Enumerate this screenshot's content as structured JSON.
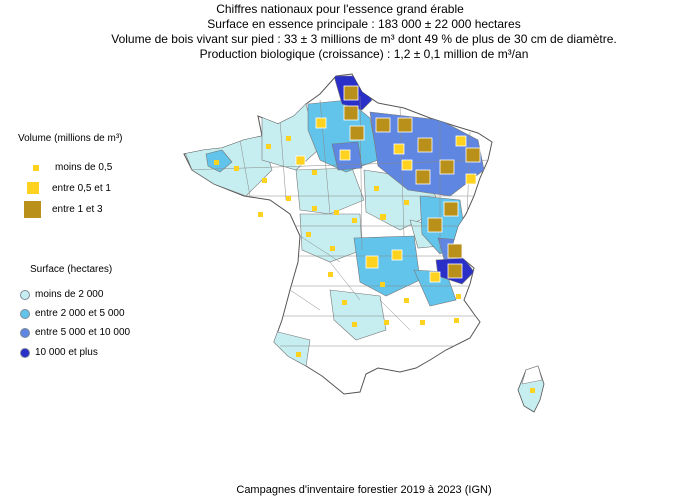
{
  "header": {
    "line1": "Chiffres nationaux pour l'essence grand érable",
    "line2": "Surface en essence principale : 183 000 ± 22 000 hectares",
    "line3": "Volume de bois vivant sur pied : 33 ± 3 millions de m³ dont 49 % de plus de 30 cm de diamètre.",
    "line4": "Production biologique (croissance) : 1,2 ± 0,1 million de m³/an"
  },
  "legend_volume": {
    "title": "Volume (millions de m³)",
    "items": [
      {
        "label": "moins de 0,5",
        "color": "#ffd21f"
      },
      {
        "label": "entre 0,5 et 1",
        "color": "#ffd21f"
      },
      {
        "label": "entre 1 et 3",
        "color": "#b8901a"
      }
    ]
  },
  "legend_surface": {
    "title": "Surface (hectares)",
    "items": [
      {
        "label": "moins de 2 000",
        "color": "#c6eef0"
      },
      {
        "label": "entre 2 000 et 5 000",
        "color": "#62c4ea"
      },
      {
        "label": "entre 5 000 et 10 000",
        "color": "#5f86e0"
      },
      {
        "label": "10 000 et plus",
        "color": "#2a2fc8"
      }
    ]
  },
  "footer": "Campagnes d'inventaire forestier 2019 à 2023 (IGN)"
}
